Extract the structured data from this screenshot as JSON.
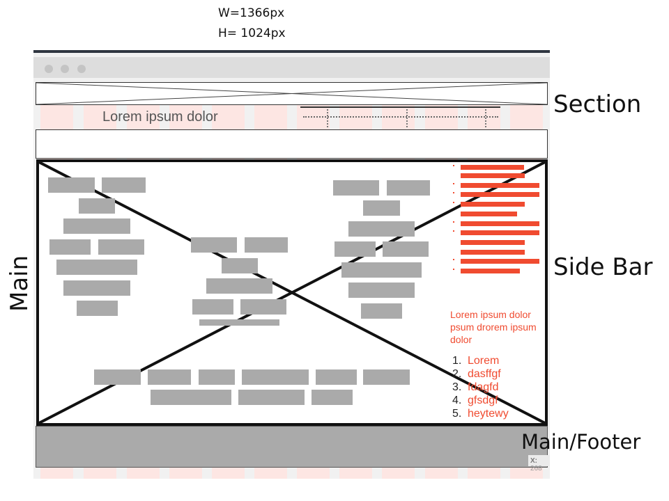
{
  "dimensions": {
    "width_label": "W=1366px",
    "height_label": "H= 1024px"
  },
  "header": {
    "headline": "Lorem ipsum dolor"
  },
  "sidebar": {
    "paragraph": "Lorem ipsum dolor psum drorem ipsum dolor",
    "list": [
      {
        "num": "1.",
        "label": "Lorem"
      },
      {
        "num": "2.",
        "label": "dasffgf"
      },
      {
        "num": "3.",
        "label": "fdagfd"
      },
      {
        "num": "4.",
        "label": "gfsdgf"
      },
      {
        "num": "5.",
        "label": "heytewy"
      }
    ]
  },
  "labels": {
    "section": "Section",
    "sidebar": "Side Bar",
    "main": "Main",
    "footer": "Main/Footer"
  },
  "coordinate_readout": {
    "prefix": "X:",
    "value": "268"
  },
  "colors": {
    "accent": "#f04b30",
    "placeholder_block": "#aaaaaa",
    "stripe": "#fde6e3"
  }
}
